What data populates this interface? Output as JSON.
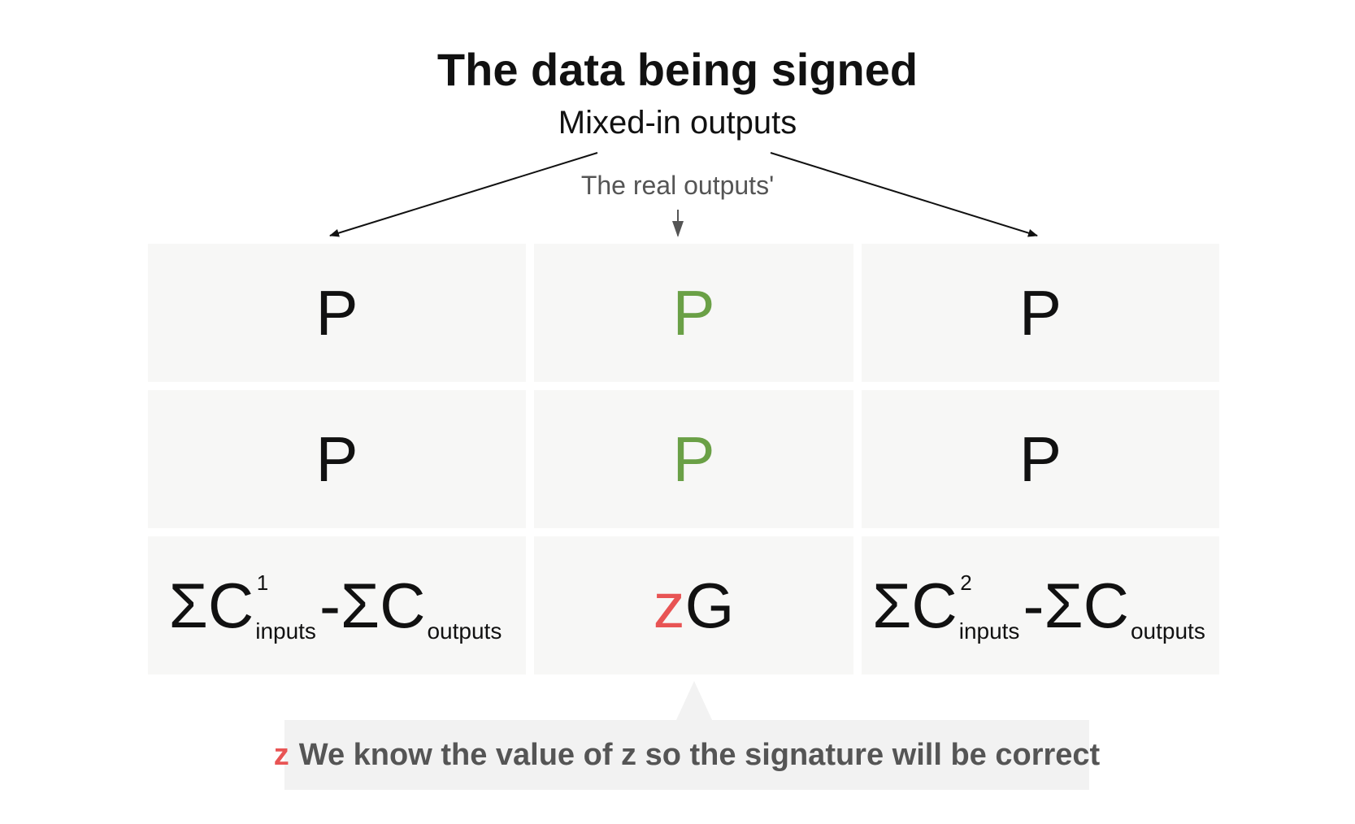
{
  "title": "The data being signed",
  "subtitle": "Mixed-in outputs",
  "real_label": "The real outputs'",
  "grid": {
    "row1": {
      "left": "P",
      "center": "P",
      "right": "P"
    },
    "row2": {
      "left": "P",
      "center": "P",
      "right": "P"
    },
    "row3": {
      "left": {
        "sigma_c": "ΣC",
        "sup": "1",
        "sub_inputs": "inputs",
        "minus_sigma_c": "-ΣC",
        "sub_outputs": "outputs"
      },
      "center": {
        "z": "z",
        "g": "G"
      },
      "right": {
        "sigma_c": "ΣC",
        "sup": "2",
        "sub_inputs": "inputs",
        "minus_sigma_c": "-ΣC",
        "sub_outputs": "outputs"
      }
    }
  },
  "note": {
    "z": "z",
    "text": "We know the value of z so the signature will be correct"
  },
  "colors": {
    "real_output": "#6aa046",
    "z_highlight": "#e85454",
    "cell_bg": "#f7f7f6"
  }
}
